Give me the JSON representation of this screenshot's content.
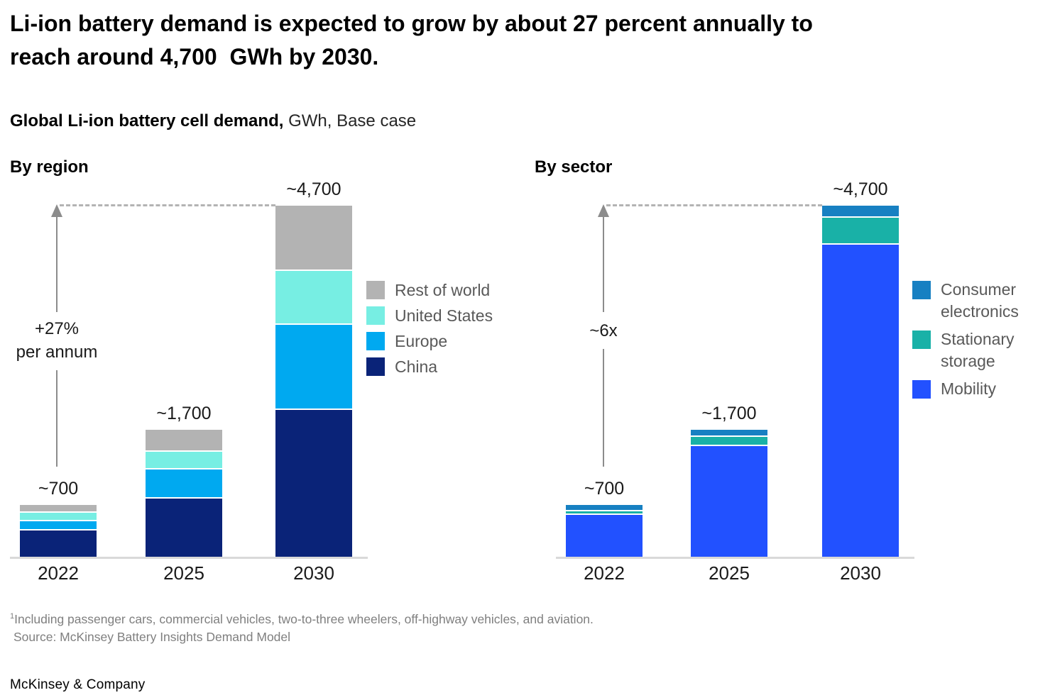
{
  "page": {
    "title_line1": "Li-ion battery demand is expected to grow by about 27 percent annually to",
    "title_line2": "reach around 4,700  GWh by 2030.",
    "subtitle_bold": "Global Li-ion battery cell demand,",
    "subtitle_rest": " GWh, Base case",
    "footnote_sup": "1",
    "footnote_text": "Including passenger cars, commercial vehicles, two-to-three wheelers, off-highway vehicles, and aviation.",
    "source": "Source: McKinsey Battery Insights Demand Model",
    "logo": "McKinsey & Company"
  },
  "colors": {
    "china": "#0a2378",
    "europe": "#00a9f0",
    "united_states": "#77eee3",
    "rest_of_world": "#b3b3b3",
    "mobility": "#2251ff",
    "stationary_storage": "#19b1a7",
    "consumer_electronics": "#1780c2",
    "axis_line": "#d9d9d9",
    "dashed_line": "#b3b3b3",
    "arrow": "#8c8c8c"
  },
  "chart_data": [
    {
      "id": "by-region",
      "type": "bar",
      "stacked": true,
      "heading": "By region",
      "unit": "GWh",
      "ylim": [
        0,
        4700
      ],
      "grid": false,
      "legend_position": "right",
      "categories": [
        "2022",
        "2025",
        "2030"
      ],
      "bar_labels": [
        "~700",
        "~1,700",
        "~4,700"
      ],
      "totals_approx": [
        700,
        1700,
        4700
      ],
      "annotation": {
        "lines": [
          "+27%",
          "per annum"
        ]
      },
      "series_top_to_bottom": [
        {
          "name": "Rest of world",
          "color": "#b3b3b3",
          "values": [
            85,
            280,
            850
          ]
        },
        {
          "name": "United States",
          "color": "#77eee3",
          "values": [
            115,
            230,
            730
          ]
        },
        {
          "name": "Europe",
          "color": "#00a9f0",
          "values": [
            120,
            390,
            1140
          ]
        },
        {
          "name": "China",
          "color": "#0a2378",
          "values": [
            370,
            800,
            1980
          ]
        }
      ]
    },
    {
      "id": "by-sector",
      "type": "bar",
      "stacked": true,
      "heading": "By sector",
      "unit": "GWh",
      "ylim": [
        0,
        4700
      ],
      "grid": false,
      "legend_position": "right",
      "categories": [
        "2022",
        "2025",
        "2030"
      ],
      "bar_labels": [
        "~700",
        "~1,700",
        "~4,700"
      ],
      "totals_approx": [
        700,
        1700,
        4700
      ],
      "annotation": {
        "lines": [
          "~6x"
        ]
      },
      "series_top_to_bottom": [
        {
          "name": "Consumer electronics",
          "color": "#1780c2",
          "values": [
            60,
            80,
            140
          ]
        },
        {
          "name": "Stationary storage",
          "color": "#19b1a7",
          "values": [
            50,
            120,
            360
          ]
        },
        {
          "name": "Mobility",
          "color": "#2251ff",
          "values": [
            580,
            1500,
            4200
          ]
        }
      ]
    }
  ]
}
